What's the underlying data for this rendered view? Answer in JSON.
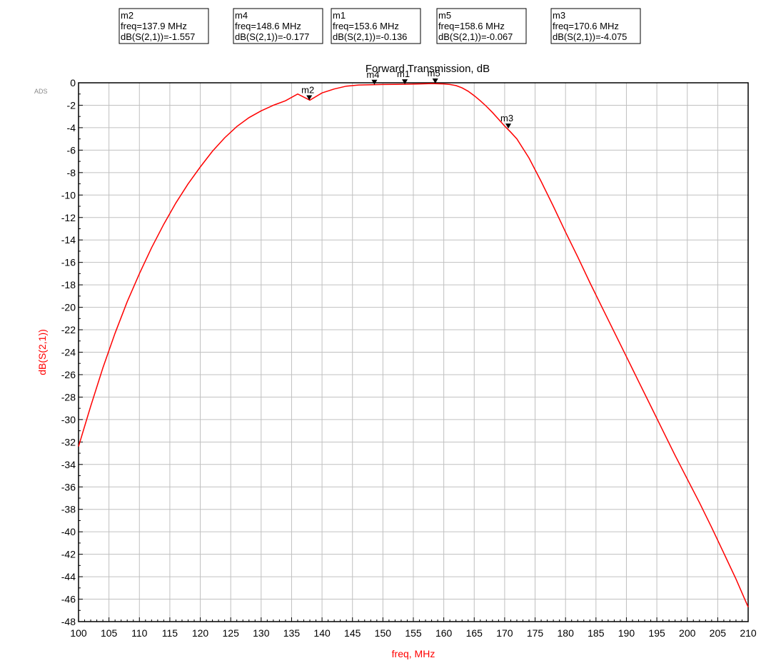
{
  "watermark": "ADS",
  "markers": [
    {
      "name": "m2",
      "freq": 137.9,
      "freq_text": "freq=137.9 MHz",
      "value_text": "dB(S(2,1))=-1.557"
    },
    {
      "name": "m4",
      "freq": 148.6,
      "freq_text": "freq=148.6 MHz",
      "value_text": "dB(S(2,1))=-0.177"
    },
    {
      "name": "m1",
      "freq": 153.6,
      "freq_text": "freq=153.6 MHz",
      "value_text": "dB(S(2,1))=-0.136"
    },
    {
      "name": "m5",
      "freq": 158.6,
      "freq_text": "freq=158.6 MHz",
      "value_text": "dB(S(2,1))=-0.067"
    },
    {
      "name": "m3",
      "freq": 170.6,
      "freq_text": "freq=170.6 MHz",
      "value_text": "dB(S(2,1))=-4.075"
    }
  ],
  "chart_data": {
    "type": "line",
    "title": "Forward Transmission, dB",
    "xlabel": "freq, MHz",
    "ylabel": "dB(S(2,1))",
    "xlim": [
      100,
      210
    ],
    "ylim": [
      -48,
      0
    ],
    "x_ticks": [
      100,
      105,
      110,
      115,
      120,
      125,
      130,
      135,
      140,
      145,
      150,
      155,
      160,
      165,
      170,
      175,
      180,
      185,
      190,
      195,
      200,
      205,
      210
    ],
    "y_ticks": [
      0,
      -2,
      -4,
      -6,
      -8,
      -10,
      -12,
      -14,
      -16,
      -18,
      -20,
      -22,
      -24,
      -26,
      -28,
      -30,
      -32,
      -34,
      -36,
      -38,
      -40,
      -42,
      -44,
      -46,
      -48
    ],
    "grid": true,
    "line_color": "#ff0000",
    "series": [
      {
        "x": [
          100,
          102,
          104,
          106,
          108,
          110,
          112,
          114,
          116,
          118,
          120,
          122,
          124,
          126,
          128,
          130,
          132,
          134,
          136,
          138,
          140,
          142,
          144,
          146,
          148,
          150,
          152,
          154,
          156,
          158,
          160,
          161,
          162,
          163,
          164,
          165,
          166,
          167,
          168,
          169,
          170,
          171,
          172,
          174,
          176,
          178,
          180,
          182,
          184,
          186,
          188,
          190,
          192,
          194,
          196,
          198,
          200,
          202,
          204,
          206,
          208,
          210
        ],
        "values": [
          -32.4,
          -28.8,
          -25.4,
          -22.3,
          -19.5,
          -17.0,
          -14.7,
          -12.6,
          -10.7,
          -9.0,
          -7.5,
          -6.1,
          -4.9,
          -3.9,
          -3.1,
          -2.5,
          -2.0,
          -1.6,
          -1.0,
          -1.55,
          -0.9,
          -0.55,
          -0.3,
          -0.2,
          -0.18,
          -0.15,
          -0.14,
          -0.13,
          -0.1,
          -0.07,
          -0.1,
          -0.15,
          -0.25,
          -0.45,
          -0.75,
          -1.15,
          -1.6,
          -2.1,
          -2.65,
          -3.25,
          -3.85,
          -4.4,
          -5.0,
          -6.7,
          -8.8,
          -11.0,
          -13.3,
          -15.5,
          -17.8,
          -20.0,
          -22.2,
          -24.4,
          -26.6,
          -28.8,
          -31.0,
          -33.2,
          -35.3,
          -37.4,
          -39.6,
          -41.9,
          -44.2,
          -46.7
        ]
      }
    ],
    "markers": [
      {
        "name": "m2",
        "x": 137.9,
        "y": -1.557
      },
      {
        "name": "m4",
        "x": 148.6,
        "y": -0.177
      },
      {
        "name": "m1",
        "x": 153.6,
        "y": -0.136
      },
      {
        "name": "m5",
        "x": 158.6,
        "y": -0.067
      },
      {
        "name": "m3",
        "x": 170.6,
        "y": -4.075
      }
    ]
  }
}
